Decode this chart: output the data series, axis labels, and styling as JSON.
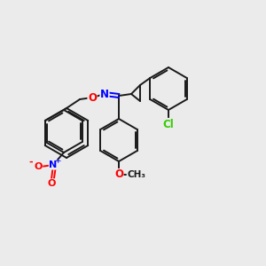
{
  "background_color": "#ebebeb",
  "bond_color": "#1a1a1a",
  "atom_colors": {
    "N": "#0000ff",
    "O": "#ff0000",
    "Cl": "#33cc00",
    "C": "#1a1a1a"
  },
  "figsize": [
    3.0,
    3.0
  ],
  "dpi": 100
}
